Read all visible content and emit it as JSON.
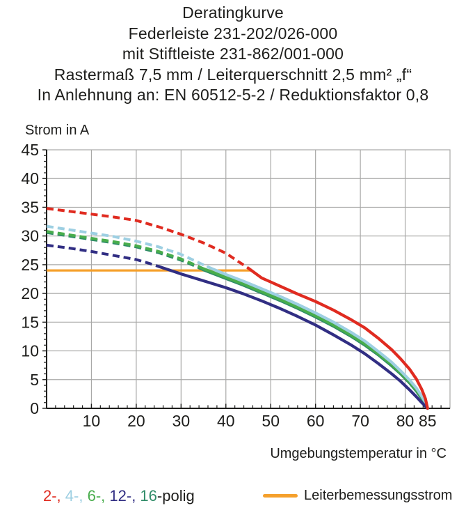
{
  "header": {
    "lines": [
      "Deratingkurve",
      "Federleiste 231-202/026-000",
      "mit Stiftleiste 231-862/001-000",
      "Rastermaß 7,5 mm / Leiterquerschnitt 2,5 mm² „f“",
      "In Anlehnung an: EN 60512-5-2 / Reduktionsfaktor 0,8"
    ]
  },
  "chart_data": {
    "type": "line",
    "ylabel": "Strom in A",
    "xlabel": "Umgebungstemperatur in °C",
    "xlim": [
      0,
      90
    ],
    "ylim": [
      0,
      45
    ],
    "x_ticks": [
      10,
      20,
      30,
      40,
      50,
      60,
      70,
      80,
      85
    ],
    "y_ticks": [
      0,
      5,
      10,
      15,
      20,
      25,
      30,
      35,
      40,
      45
    ],
    "x_minor_step": 2,
    "y_minor_step": 1,
    "grid": true,
    "series": [
      {
        "name": "2-polig",
        "color": "#e02b20",
        "z": 5,
        "dashed": [
          [
            0,
            34.8
          ],
          [
            5,
            34.3
          ],
          [
            10,
            33.8
          ],
          [
            15,
            33.3
          ],
          [
            20,
            32.7
          ],
          [
            25,
            31.6
          ],
          [
            30,
            30.3
          ],
          [
            35,
            28.8
          ],
          [
            40,
            27.0
          ],
          [
            45,
            24.4
          ]
        ],
        "solid": [
          [
            45,
            24.4
          ],
          [
            48,
            22.7
          ],
          [
            52,
            21.3
          ],
          [
            56,
            19.9
          ],
          [
            60,
            18.6
          ],
          [
            64,
            17.1
          ],
          [
            68,
            15.4
          ],
          [
            71,
            14.0
          ],
          [
            74,
            12.2
          ],
          [
            77,
            10.2
          ],
          [
            79,
            8.6
          ],
          [
            81,
            6.8
          ],
          [
            82.5,
            5.1
          ],
          [
            83.7,
            3.3
          ],
          [
            84.5,
            1.7
          ],
          [
            85,
            0
          ]
        ]
      },
      {
        "name": "4-polig",
        "color": "#9dcfe2",
        "z": 3,
        "dashed": [
          [
            0,
            31.7
          ],
          [
            5,
            31.1
          ],
          [
            10,
            30.5
          ],
          [
            15,
            29.9
          ],
          [
            20,
            29.1
          ],
          [
            25,
            28.1
          ],
          [
            30,
            26.8
          ],
          [
            33,
            25.7
          ],
          [
            36,
            24.6
          ]
        ],
        "solid": [
          [
            36,
            24.6
          ],
          [
            40,
            23.3
          ],
          [
            44,
            22.1
          ],
          [
            48,
            20.8
          ],
          [
            52,
            19.5
          ],
          [
            56,
            18.1
          ],
          [
            60,
            16.6
          ],
          [
            64,
            15.0
          ],
          [
            68,
            13.2
          ],
          [
            71,
            11.7
          ],
          [
            74,
            9.9
          ],
          [
            77,
            8.0
          ],
          [
            79,
            6.5
          ],
          [
            81,
            4.9
          ],
          [
            82.5,
            3.5
          ],
          [
            83.7,
            2.1
          ],
          [
            84.6,
            0.9
          ],
          [
            85,
            0
          ]
        ]
      },
      {
        "name": "6-polig",
        "color": "#48ad4c",
        "z": 2,
        "dashed": [
          [
            0,
            30.8
          ],
          [
            5,
            30.2
          ],
          [
            10,
            29.6
          ],
          [
            15,
            29.0
          ],
          [
            20,
            28.3
          ],
          [
            25,
            27.3
          ],
          [
            30,
            26.0
          ],
          [
            33,
            25.0
          ],
          [
            35,
            24.3
          ]
        ],
        "solid": [
          [
            35,
            24.3
          ],
          [
            40,
            22.8
          ],
          [
            44,
            21.6
          ],
          [
            48,
            20.3
          ],
          [
            52,
            19.0
          ],
          [
            56,
            17.6
          ],
          [
            60,
            16.1
          ],
          [
            64,
            14.5
          ],
          [
            68,
            12.7
          ],
          [
            71,
            11.2
          ],
          [
            74,
            9.5
          ],
          [
            77,
            7.6
          ],
          [
            79,
            6.2
          ],
          [
            81,
            4.6
          ],
          [
            82.5,
            3.2
          ],
          [
            83.7,
            1.9
          ],
          [
            84.6,
            0.8
          ],
          [
            85,
            0
          ]
        ]
      },
      {
        "name": "12-polig",
        "color": "#312e83",
        "z": 4,
        "dashed": [
          [
            0,
            28.4
          ],
          [
            5,
            27.9
          ],
          [
            10,
            27.3
          ],
          [
            15,
            26.6
          ],
          [
            20,
            25.9
          ],
          [
            23,
            25.2
          ],
          [
            25,
            24.7
          ]
        ],
        "solid": [
          [
            25,
            24.7
          ],
          [
            30,
            23.4
          ],
          [
            35,
            22.2
          ],
          [
            40,
            21.0
          ],
          [
            44,
            19.9
          ],
          [
            48,
            18.7
          ],
          [
            52,
            17.4
          ],
          [
            56,
            16.0
          ],
          [
            60,
            14.5
          ],
          [
            64,
            12.8
          ],
          [
            68,
            11.0
          ],
          [
            71,
            9.5
          ],
          [
            74,
            7.8
          ],
          [
            77,
            6.0
          ],
          [
            79,
            4.7
          ],
          [
            81,
            3.2
          ],
          [
            82.5,
            2.0
          ],
          [
            83.7,
            1.0
          ],
          [
            84.6,
            0.3
          ],
          [
            85,
            0
          ]
        ]
      },
      {
        "name": "16-polig",
        "color": "#2e8b67",
        "z": 1,
        "dashed": [
          [
            0,
            30.6
          ],
          [
            5,
            30.0
          ],
          [
            10,
            29.4
          ],
          [
            15,
            28.8
          ],
          [
            20,
            28.1
          ],
          [
            25,
            27.1
          ],
          [
            30,
            25.8
          ],
          [
            33,
            24.8
          ],
          [
            35,
            24.1
          ]
        ],
        "solid": [
          [
            35,
            24.1
          ],
          [
            40,
            22.6
          ],
          [
            44,
            21.4
          ],
          [
            48,
            20.1
          ],
          [
            52,
            18.8
          ],
          [
            56,
            17.4
          ],
          [
            60,
            15.9
          ],
          [
            64,
            14.3
          ],
          [
            68,
            12.5
          ],
          [
            71,
            11.0
          ],
          [
            74,
            9.3
          ],
          [
            77,
            7.4
          ],
          [
            79,
            6.0
          ],
          [
            81,
            4.4
          ],
          [
            82.5,
            3.0
          ],
          [
            83.7,
            1.7
          ],
          [
            84.6,
            0.7
          ],
          [
            85,
            0
          ]
        ]
      }
    ],
    "reference_line": {
      "name": "Leiterbemessungsstrom",
      "color": "#f5a02c",
      "value": 24,
      "x_start": 0,
      "x_end": 45.5
    }
  },
  "legend": {
    "poles": {
      "items": [
        {
          "label": "2-,",
          "color": "#e02b20"
        },
        {
          "label": "4-,",
          "color": "#9dcfe2"
        },
        {
          "label": "6-,",
          "color": "#48ad4c"
        },
        {
          "label": "12-,",
          "color": "#312e83"
        },
        {
          "label": "16",
          "color": "#2e8b67"
        }
      ],
      "suffix": "-polig"
    },
    "rated_current": {
      "label": "Leiterbemessungsstrom",
      "color": "#f5a02c"
    }
  },
  "colors": {
    "background": "#ffffff",
    "text": "#1d1d1b",
    "axis": "#1d1d1b",
    "grid": "#a8a8a7"
  }
}
